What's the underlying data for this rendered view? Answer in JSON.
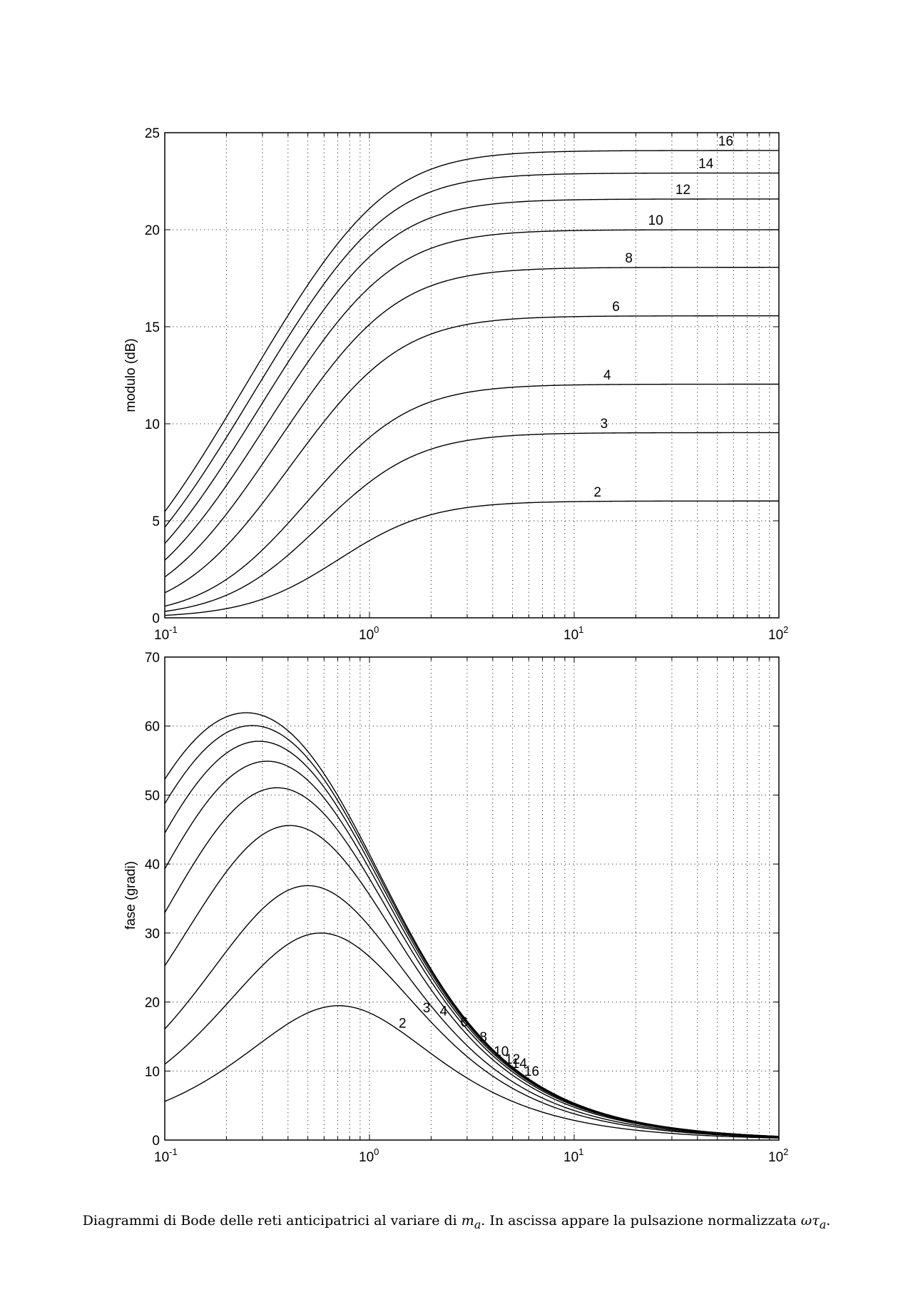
{
  "chart_data": [
    {
      "type": "line",
      "id": "magnitude",
      "ylabel": "modulo (dB)",
      "xscale": "log",
      "xlim": [
        0.1,
        100
      ],
      "ylim": [
        0,
        25
      ],
      "yticks": [
        0,
        5,
        10,
        15,
        20,
        25
      ],
      "xticks": [
        0.1,
        1,
        10,
        100
      ],
      "grid": true,
      "quantity": "magnitude_db",
      "series": [
        {
          "name": "16",
          "ma": 16,
          "label_x": 55
        },
        {
          "name": "14",
          "ma": 14,
          "label_x": 44
        },
        {
          "name": "12",
          "ma": 12,
          "label_x": 34
        },
        {
          "name": "10",
          "ma": 10,
          "label_x": 25
        },
        {
          "name": "8",
          "ma": 8,
          "label_x": 18.5
        },
        {
          "name": "6",
          "ma": 6,
          "label_x": 16
        },
        {
          "name": "4",
          "ma": 4,
          "label_x": 14.5
        },
        {
          "name": "3",
          "ma": 3,
          "label_x": 14
        },
        {
          "name": "2",
          "ma": 2,
          "label_x": 13
        }
      ]
    },
    {
      "type": "line",
      "id": "phase",
      "ylabel": "fase (gradi)",
      "xscale": "log",
      "xlim": [
        0.1,
        100
      ],
      "ylim": [
        0,
        70
      ],
      "yticks": [
        0,
        10,
        20,
        30,
        40,
        50,
        60,
        70
      ],
      "xticks": [
        0.1,
        1,
        10,
        100
      ],
      "grid": true,
      "quantity": "phase_deg",
      "series": [
        {
          "name": "16",
          "ma": 16,
          "label_x": 6.2
        },
        {
          "name": "14",
          "ma": 14,
          "label_x": 5.4
        },
        {
          "name": "12",
          "ma": 12,
          "label_x": 5.0
        },
        {
          "name": "10",
          "ma": 10,
          "label_x": 4.4
        },
        {
          "name": "8",
          "ma": 8,
          "label_x": 3.6
        },
        {
          "name": "6",
          "ma": 6,
          "label_x": 2.9
        },
        {
          "name": "4",
          "ma": 4,
          "label_x": 2.3
        },
        {
          "name": "3",
          "ma": 3,
          "label_x": 1.9
        },
        {
          "name": "2",
          "ma": 2,
          "label_x": 1.45
        }
      ]
    }
  ],
  "caption": {
    "before": "Diagrammi di Bode delle reti anticipatrici al variare di ",
    "var1": "m",
    "var1_sub": "a",
    "middle": ". In ascissa appare la pulsazione normalizzata ",
    "var2": "ωτ",
    "var2_sub": "a",
    "after": "."
  }
}
